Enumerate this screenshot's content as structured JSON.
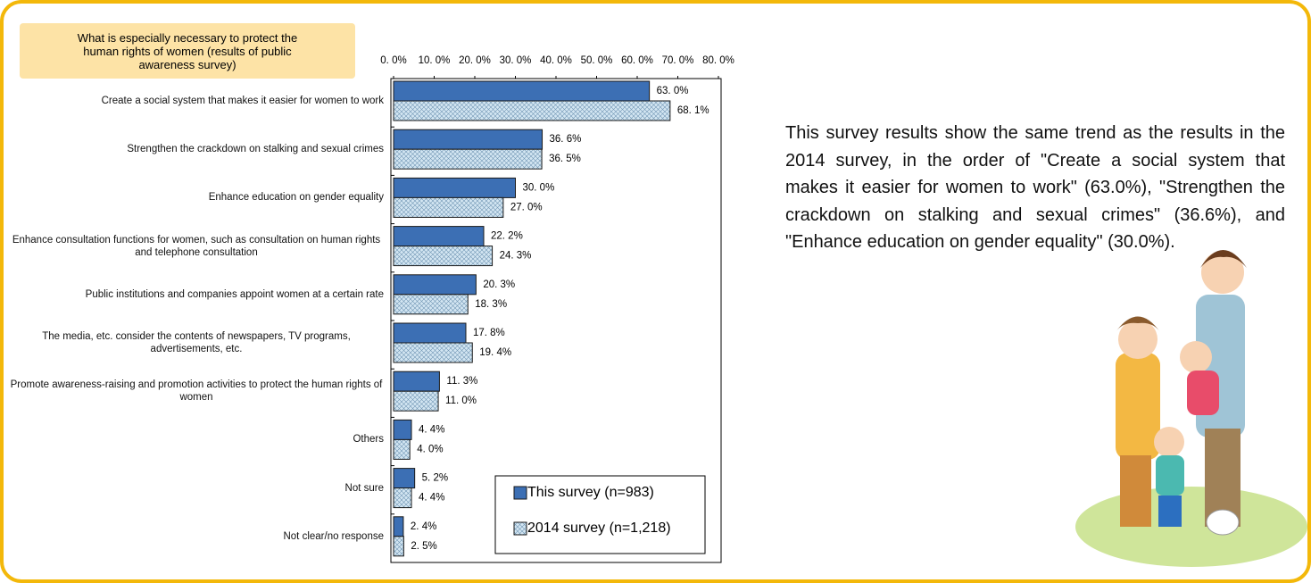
{
  "chart_data": {
    "type": "barh",
    "title": "What is especially necessary to protect the human rights of women (results of public awareness survey)",
    "categories": [
      "Create a social system that makes it easier for women to work",
      "Strengthen the crackdown on stalking and sexual crimes",
      "Enhance education on gender equality",
      "Enhance consultation functions for women, such as consultation on human rights and telephone consultation",
      "Public institutions and companies appoint women at a certain rate",
      "The media, etc. consider the contents of newspapers, TV programs, advertisements, etc.",
      "Promote awareness-raising and promotion activities to protect the human rights of women",
      "Others",
      "Not sure",
      "Not clear/no response"
    ],
    "series": [
      {
        "name": "This survey (n=983)",
        "color": "#3c6fb4",
        "pattern": "solid",
        "values": [
          63.0,
          36.6,
          30.0,
          22.2,
          20.3,
          17.8,
          11.3,
          4.4,
          5.2,
          2.4
        ],
        "value_labels": [
          "63. 0%",
          "36. 6%",
          "30. 0%",
          "22. 2%",
          "20. 3%",
          "17. 8%",
          "11. 3%",
          "4. 4%",
          "5. 2%",
          "2. 4%"
        ]
      },
      {
        "name": "2014 survey (n=1,218)",
        "color": "#d3e6f2",
        "pattern": "crosshatch",
        "values": [
          68.1,
          36.5,
          27.0,
          24.3,
          18.3,
          19.4,
          11.0,
          4.0,
          4.4,
          2.5
        ],
        "value_labels": [
          "68. 1%",
          "36. 5%",
          "27. 0%",
          "24. 3%",
          "18. 3%",
          "19. 4%",
          "11. 0%",
          "4. 0%",
          "4. 4%",
          "2. 5%"
        ]
      }
    ],
    "xlim": [
      0,
      80
    ],
    "xticks": [
      {
        "value": 0,
        "label": "0. 0%"
      },
      {
        "value": 10,
        "label": "10. 0%"
      },
      {
        "value": 20,
        "label": "20. 0%"
      },
      {
        "value": 30,
        "label": "30. 0%"
      },
      {
        "value": 40,
        "label": "40. 0%"
      },
      {
        "value": 50,
        "label": "50. 0%"
      },
      {
        "value": 60,
        "label": "60. 0%"
      },
      {
        "value": 70,
        "label": "70. 0%"
      },
      {
        "value": 80,
        "label": "80. 0%"
      }
    ],
    "grid": false,
    "legend": "lower right"
  },
  "paragraph": "This survey results show the same trend as the results in the 2014 survey, in the order of \"Create a social system that makes it easier for women to work\" (63.0%), \"Strengthen the crackdown on stalking and sexual crimes\" (36.6%), and \"Enhance education on gender equality\" (30.0%)."
}
